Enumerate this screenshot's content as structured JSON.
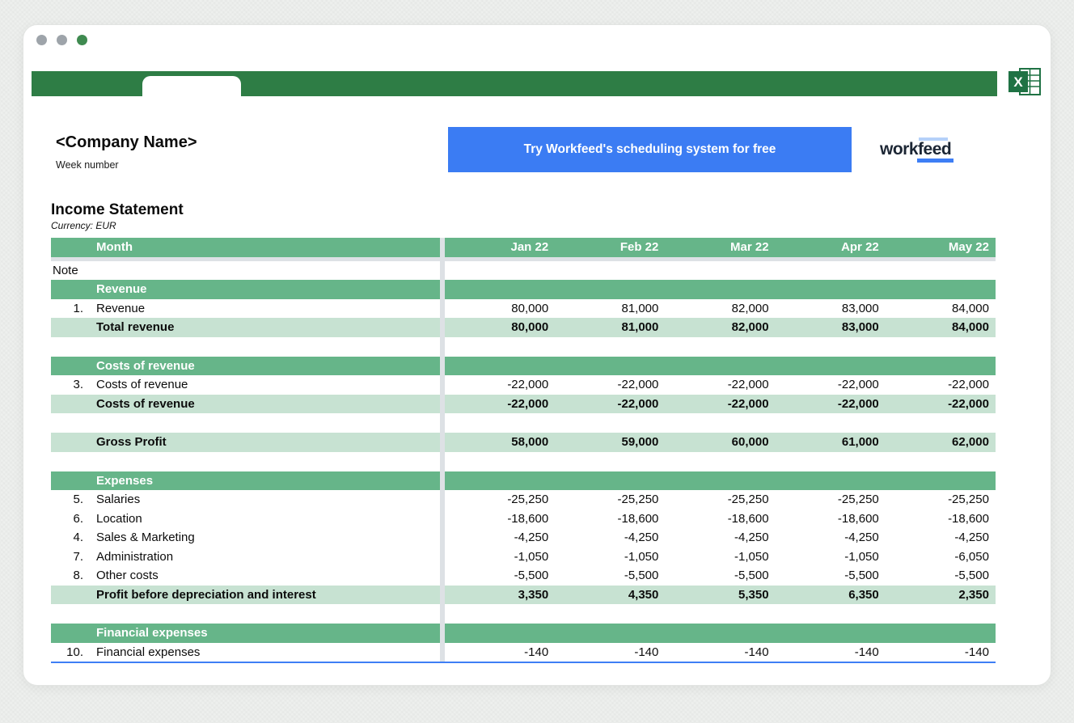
{
  "colors": {
    "tab_bar_green": "#2E7D45",
    "section_header_green": "#66B589",
    "total_row_light_green": "#C7E2D2",
    "accent_blue": "#3B7CF3",
    "divider_gray": "#DDE1E5",
    "excel_logo_green": "#1F7244",
    "traffic_light_gray": "#9EA4AA",
    "traffic_light_green": "#3F8A50"
  },
  "window": {
    "traffic_lights": [
      "gray",
      "gray",
      "green"
    ]
  },
  "header": {
    "company_name": "<Company Name>",
    "week_label": "Week number",
    "cta_label": "Try Workfeed's scheduling system for free",
    "logo_word_left": "work",
    "logo_word_right": "feed",
    "excel_icon_letter": "X"
  },
  "statement": {
    "title": "Income Statement",
    "subtitle": "Currency: EUR",
    "table": {
      "month_label": "Month",
      "months": [
        "Jan 22",
        "Feb 22",
        "Mar 22",
        "Apr 22",
        "May 22"
      ],
      "rows": [
        {
          "type": "note",
          "label": "Note"
        },
        {
          "type": "section",
          "label": "Revenue"
        },
        {
          "type": "item",
          "num": "1.",
          "label": "Revenue",
          "values": [
            "80,000",
            "81,000",
            "82,000",
            "83,000",
            "84,000"
          ]
        },
        {
          "type": "total",
          "label": "Total revenue",
          "values": [
            "80,000",
            "81,000",
            "82,000",
            "83,000",
            "84,000"
          ]
        },
        {
          "type": "spacer"
        },
        {
          "type": "section",
          "label": "Costs of revenue"
        },
        {
          "type": "item",
          "num": "3.",
          "label": "Costs of revenue",
          "values": [
            "-22,000",
            "-22,000",
            "-22,000",
            "-22,000",
            "-22,000"
          ]
        },
        {
          "type": "total",
          "label": "Costs of revenue",
          "values": [
            "-22,000",
            "-22,000",
            "-22,000",
            "-22,000",
            "-22,000"
          ]
        },
        {
          "type": "spacer"
        },
        {
          "type": "total",
          "label": "Gross Profit",
          "values": [
            "58,000",
            "59,000",
            "60,000",
            "61,000",
            "62,000"
          ]
        },
        {
          "type": "spacer"
        },
        {
          "type": "section",
          "label": "Expenses"
        },
        {
          "type": "item",
          "num": "5.",
          "label": "Salaries",
          "values": [
            "-25,250",
            "-25,250",
            "-25,250",
            "-25,250",
            "-25,250"
          ]
        },
        {
          "type": "item",
          "num": "6.",
          "label": "Location",
          "values": [
            "-18,600",
            "-18,600",
            "-18,600",
            "-18,600",
            "-18,600"
          ]
        },
        {
          "type": "item",
          "num": "4.",
          "label": "Sales & Marketing",
          "values": [
            "-4,250",
            "-4,250",
            "-4,250",
            "-4,250",
            "-4,250"
          ]
        },
        {
          "type": "item",
          "num": "7.",
          "label": "Administration",
          "values": [
            "-1,050",
            "-1,050",
            "-1,050",
            "-1,050",
            "-6,050"
          ]
        },
        {
          "type": "item",
          "num": "8.",
          "label": "Other costs",
          "values": [
            "-5,500",
            "-5,500",
            "-5,500",
            "-5,500",
            "-5,500"
          ]
        },
        {
          "type": "total",
          "label": "Profit before depreciation and interest",
          "values": [
            "3,350",
            "4,350",
            "5,350",
            "6,350",
            "2,350"
          ]
        },
        {
          "type": "spacer"
        },
        {
          "type": "section",
          "label": "Financial expenses"
        },
        {
          "type": "item",
          "num": "10.",
          "label": "Financial expenses",
          "values": [
            "-140",
            "-140",
            "-140",
            "-140",
            "-140"
          ]
        }
      ]
    }
  }
}
